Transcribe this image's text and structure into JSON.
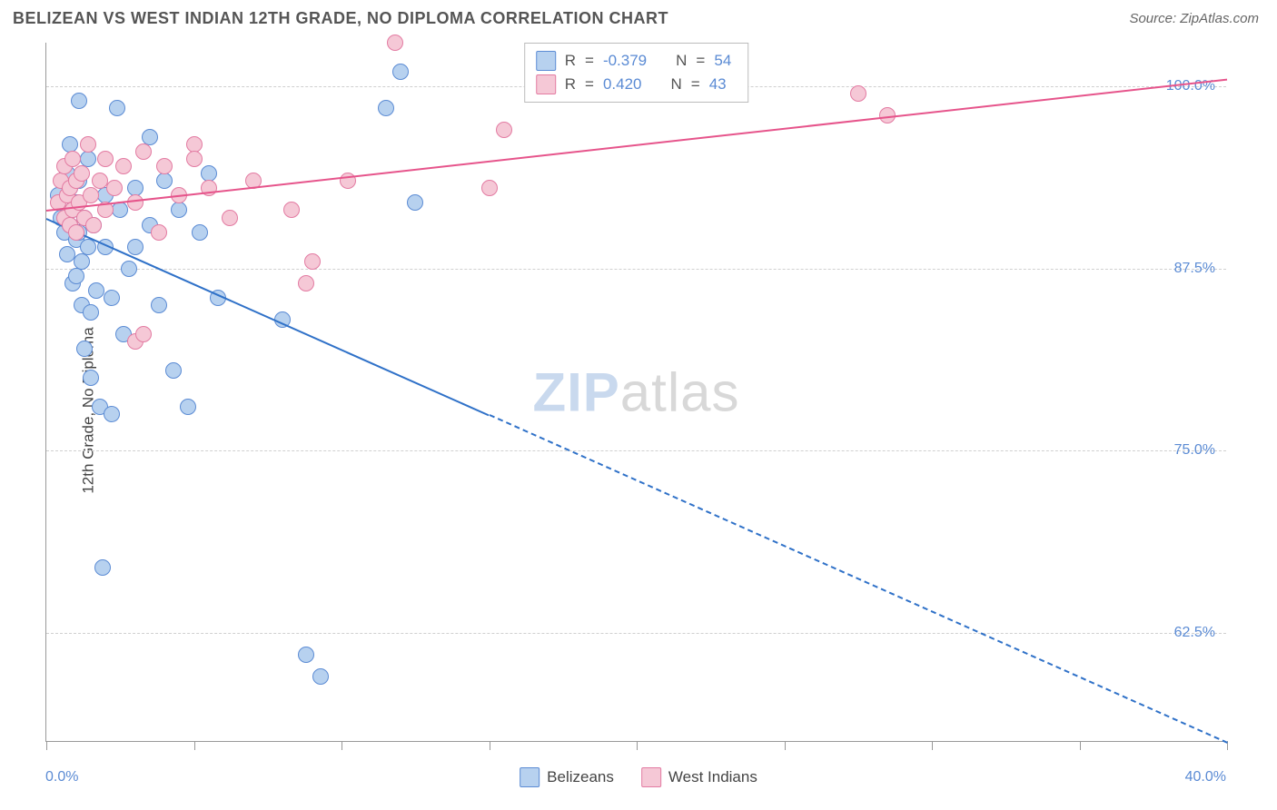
{
  "header": {
    "title": "BELIZEAN VS WEST INDIAN 12TH GRADE, NO DIPLOMA CORRELATION CHART",
    "source": "Source: ZipAtlas.com"
  },
  "chart": {
    "type": "scatter",
    "ylabel": "12th Grade, No Diploma",
    "xlim": [
      0,
      40
    ],
    "ylim": [
      55,
      103
    ],
    "xtick_positions": [
      0,
      5,
      10,
      15,
      20,
      25,
      30,
      35,
      40
    ],
    "ytick_positions": [
      62.5,
      75,
      87.5,
      100
    ],
    "ytick_labels": [
      "62.5%",
      "75.0%",
      "87.5%",
      "100.0%"
    ],
    "x_axis_labels": {
      "left": "0.0%",
      "right": "40.0%"
    },
    "grid_color": "#d0d0d0",
    "background_color": "#ffffff",
    "series": [
      {
        "name": "Belizeans",
        "marker_fill": "#b7d1ef",
        "marker_border": "#5b8bd4",
        "marker_border_width": 1.5,
        "marker_size": 18,
        "trend": {
          "color": "#2f71c8",
          "width": 2.5,
          "x1": 0,
          "y1": 91.0,
          "x2": 40,
          "y2": 55.0,
          "solid_until_x": 15
        },
        "stats": {
          "R": "-0.379",
          "N": "54"
        },
        "points": [
          [
            0.4,
            92.5
          ],
          [
            0.5,
            91.0
          ],
          [
            0.6,
            90.0
          ],
          [
            0.7,
            94.0
          ],
          [
            0.7,
            88.5
          ],
          [
            0.8,
            96.0
          ],
          [
            0.8,
            93.0
          ],
          [
            0.8,
            90.5
          ],
          [
            0.9,
            91.5
          ],
          [
            0.9,
            86.5
          ],
          [
            1.0,
            92.0
          ],
          [
            1.0,
            89.5
          ],
          [
            1.0,
            87.0
          ],
          [
            1.1,
            99.0
          ],
          [
            1.1,
            93.5
          ],
          [
            1.1,
            90.0
          ],
          [
            1.2,
            88.0
          ],
          [
            1.2,
            85.0
          ],
          [
            1.3,
            91.0
          ],
          [
            1.3,
            82.0
          ],
          [
            1.4,
            95.0
          ],
          [
            1.4,
            89.0
          ],
          [
            1.5,
            84.5
          ],
          [
            1.5,
            80.0
          ],
          [
            1.6,
            90.5
          ],
          [
            1.7,
            86.0
          ],
          [
            1.8,
            78.0
          ],
          [
            1.9,
            67.0
          ],
          [
            2.0,
            92.5
          ],
          [
            2.0,
            89.0
          ],
          [
            2.2,
            85.5
          ],
          [
            2.2,
            77.5
          ],
          [
            2.4,
            98.5
          ],
          [
            2.5,
            91.5
          ],
          [
            2.6,
            83.0
          ],
          [
            2.8,
            87.5
          ],
          [
            3.0,
            93.0
          ],
          [
            3.0,
            89.0
          ],
          [
            3.5,
            96.5
          ],
          [
            3.5,
            90.5
          ],
          [
            3.8,
            85.0
          ],
          [
            4.0,
            93.5
          ],
          [
            4.3,
            80.5
          ],
          [
            4.5,
            91.5
          ],
          [
            4.8,
            78.0
          ],
          [
            5.2,
            90.0
          ],
          [
            5.5,
            94.0
          ],
          [
            5.8,
            85.5
          ],
          [
            8.0,
            84.0
          ],
          [
            8.8,
            61.0
          ],
          [
            9.3,
            59.5
          ],
          [
            11.5,
            98.5
          ],
          [
            12.0,
            101.0
          ],
          [
            12.5,
            92.0
          ]
        ]
      },
      {
        "name": "West Indians",
        "marker_fill": "#f5c8d6",
        "marker_border": "#e37ba2",
        "marker_border_width": 1.5,
        "marker_size": 18,
        "trend": {
          "color": "#e6548b",
          "width": 2.5,
          "x1": 0,
          "y1": 91.5,
          "x2": 40,
          "y2": 100.5,
          "solid_until_x": 40
        },
        "stats": {
          "R": " 0.420",
          "N": "43"
        },
        "points": [
          [
            0.4,
            92.0
          ],
          [
            0.5,
            93.5
          ],
          [
            0.6,
            91.0
          ],
          [
            0.6,
            94.5
          ],
          [
            0.7,
            92.5
          ],
          [
            0.8,
            90.5
          ],
          [
            0.8,
            93.0
          ],
          [
            0.9,
            95.0
          ],
          [
            0.9,
            91.5
          ],
          [
            1.0,
            93.5
          ],
          [
            1.0,
            90.0
          ],
          [
            1.1,
            92.0
          ],
          [
            1.2,
            94.0
          ],
          [
            1.3,
            91.0
          ],
          [
            1.4,
            96.0
          ],
          [
            1.5,
            92.5
          ],
          [
            1.6,
            90.5
          ],
          [
            1.8,
            93.5
          ],
          [
            2.0,
            95.0
          ],
          [
            2.0,
            91.5
          ],
          [
            2.3,
            93.0
          ],
          [
            2.6,
            94.5
          ],
          [
            3.0,
            92.0
          ],
          [
            3.0,
            82.5
          ],
          [
            3.3,
            95.5
          ],
          [
            3.3,
            83.0
          ],
          [
            3.8,
            90.0
          ],
          [
            4.0,
            94.5
          ],
          [
            4.5,
            92.5
          ],
          [
            5.0,
            96.0
          ],
          [
            5.0,
            95.0
          ],
          [
            5.5,
            93.0
          ],
          [
            6.2,
            91.0
          ],
          [
            7.0,
            93.5
          ],
          [
            8.3,
            91.5
          ],
          [
            8.8,
            86.5
          ],
          [
            9.0,
            88.0
          ],
          [
            10.2,
            93.5
          ],
          [
            11.8,
            103.0
          ],
          [
            15.0,
            93.0
          ],
          [
            15.5,
            97.0
          ],
          [
            27.5,
            99.5
          ],
          [
            28.5,
            98.0
          ]
        ]
      }
    ],
    "legend_box": {
      "swatch_blue_fill": "#b7d1ef",
      "swatch_blue_border": "#5b8bd4",
      "swatch_pink_fill": "#f5c8d6",
      "swatch_pink_border": "#e37ba2",
      "R_label": "R",
      "N_label": "N",
      "eq": "="
    },
    "bottom_legend": [
      {
        "label": "Belizeans",
        "fill": "#b7d1ef",
        "border": "#5b8bd4"
      },
      {
        "label": "West Indians",
        "fill": "#f5c8d6",
        "border": "#e37ba2"
      }
    ],
    "watermark": {
      "a": "ZIP",
      "b": "atlas"
    }
  }
}
